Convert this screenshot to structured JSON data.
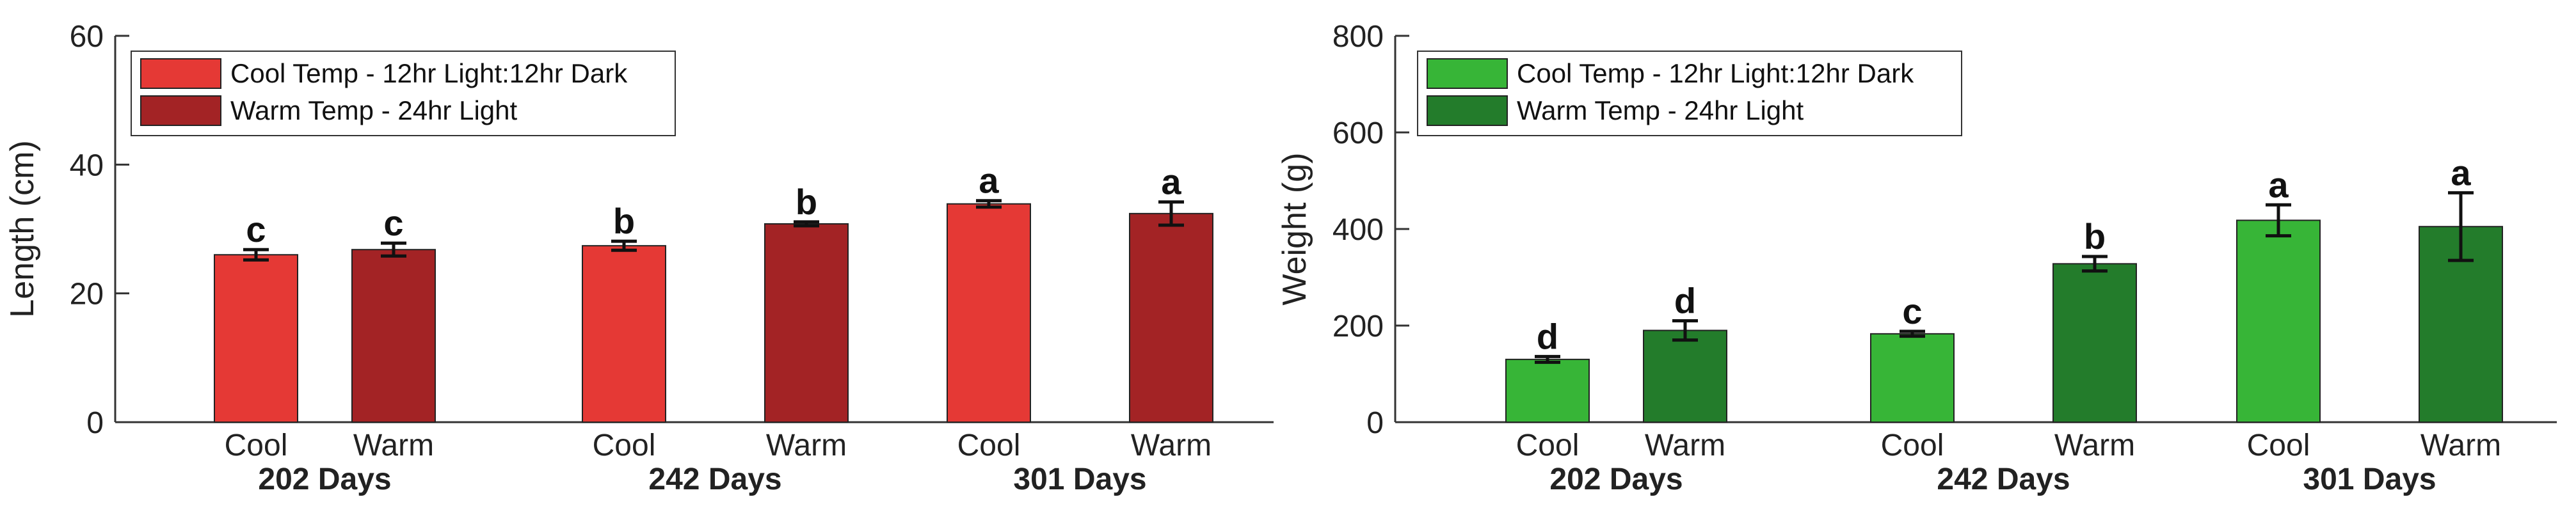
{
  "chart_data": [
    {
      "type": "bar",
      "xlabel": "",
      "ylabel": "Length (cm)",
      "ylim": [
        0,
        60
      ],
      "yticks": [
        "0",
        "20",
        "40",
        "60"
      ],
      "grid": false,
      "legend_position": "top-left",
      "series": [
        {
          "name": "Cool Temp - 12hr Light:12hr Dark",
          "color": "#E53935"
        },
        {
          "name": "Warm Temp - 24hr Light",
          "color": "#A32325"
        }
      ],
      "groups": [
        {
          "label": "202 Days",
          "bars": [
            {
              "category": "Cool",
              "series": 0,
              "value": 26.0,
              "error": 0.8,
              "letter": "c"
            },
            {
              "category": "Warm",
              "series": 1,
              "value": 26.8,
              "error": 1.0,
              "letter": "c"
            }
          ]
        },
        {
          "label": "242 Days",
          "bars": [
            {
              "category": "Cool",
              "series": 0,
              "value": 27.4,
              "error": 0.7,
              "letter": "b"
            },
            {
              "category": "Warm",
              "series": 1,
              "value": 30.8,
              "error": 0.3,
              "letter": "b"
            }
          ]
        },
        {
          "label": "301 Days",
          "bars": [
            {
              "category": "Cool",
              "series": 0,
              "value": 33.9,
              "error": 0.5,
              "letter": "a"
            },
            {
              "category": "Warm",
              "series": 1,
              "value": 32.4,
              "error": 1.8,
              "letter": "a"
            }
          ]
        }
      ]
    },
    {
      "type": "bar",
      "xlabel": "",
      "ylabel": "Weight (g)",
      "ylim": [
        0,
        800
      ],
      "yticks": [
        "0",
        "200",
        "400",
        "600",
        "800"
      ],
      "grid": false,
      "legend_position": "top-left",
      "series": [
        {
          "name": "Cool Temp - 12hr Light:12hr Dark",
          "color": "#37B537"
        },
        {
          "name": "Warm Temp - 24hr Light",
          "color": "#237C2B"
        }
      ],
      "groups": [
        {
          "label": "202 Days",
          "bars": [
            {
              "category": "Cool",
              "series": 0,
              "value": 130,
              "error": 6,
              "letter": "d"
            },
            {
              "category": "Warm",
              "series": 1,
              "value": 190,
              "error": 20,
              "letter": "d"
            }
          ]
        },
        {
          "label": "242 Days",
          "bars": [
            {
              "category": "Cool",
              "series": 0,
              "value": 183,
              "error": 5,
              "letter": "c"
            },
            {
              "category": "Warm",
              "series": 1,
              "value": 328,
              "error": 15,
              "letter": "b"
            }
          ]
        },
        {
          "label": "301 Days",
          "bars": [
            {
              "category": "Cool",
              "series": 0,
              "value": 418,
              "error": 32,
              "letter": "a"
            },
            {
              "category": "Warm",
              "series": 1,
              "value": 405,
              "error": 70,
              "letter": "a"
            }
          ]
        }
      ]
    }
  ]
}
